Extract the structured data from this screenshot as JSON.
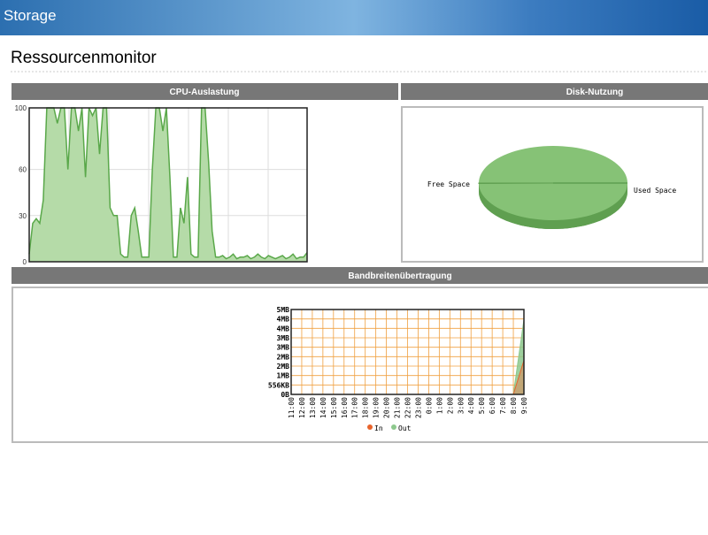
{
  "header": {
    "title": "Storage"
  },
  "page_title": "Ressourcenmonitor",
  "panels": {
    "cpu": {
      "title": "CPU-Auslastung",
      "chart_data": {
        "type": "area",
        "color": "#5aa84a",
        "fill": "#b5dba8",
        "values": [
          5,
          25,
          28,
          25,
          40,
          100,
          100,
          100,
          90,
          100,
          100,
          60,
          100,
          100,
          85,
          100,
          55,
          100,
          95,
          100,
          70,
          100,
          100,
          35,
          30,
          30,
          5,
          3,
          3,
          30,
          35,
          20,
          3,
          3,
          3,
          60,
          100,
          100,
          85,
          100,
          55,
          3,
          3,
          35,
          25,
          55,
          5,
          3,
          3,
          100,
          100,
          65,
          20,
          3,
          3,
          4,
          2,
          3,
          5,
          2,
          3,
          3,
          4,
          2,
          3,
          5,
          3,
          2,
          4,
          3,
          2,
          3,
          4,
          2,
          3,
          5,
          2,
          3,
          3,
          6
        ],
        "ylim": [
          0,
          100
        ],
        "yticks": [
          0,
          30,
          60,
          100
        ],
        "grid": true
      }
    },
    "disk": {
      "title": "Disk-Nutzung",
      "chart_data": {
        "type": "pie",
        "categories": [
          "Free Space",
          "Used Space"
        ],
        "values": [
          99.8,
          0.2
        ],
        "colors": [
          "#86c276",
          "#5f9f50"
        ]
      }
    },
    "bandwidth": {
      "title": "Bandbreitenübertragung",
      "chart_data": {
        "type": "area",
        "categories": [
          "11:00",
          "12:00",
          "13:00",
          "14:00",
          "15:00",
          "16:00",
          "17:00",
          "18:00",
          "19:00",
          "20:00",
          "21:00",
          "22:00",
          "23:00",
          "0:00",
          "1:00",
          "2:00",
          "3:00",
          "4:00",
          "5:00",
          "6:00",
          "7:00",
          "8:00",
          "9:00"
        ],
        "series": [
          {
            "name": "In",
            "color": "#e8642c",
            "values": [
              0,
              0,
              0,
              0,
              0,
              0,
              0,
              0,
              0,
              0,
              0,
              0,
              0,
              0,
              0,
              0,
              0,
              0,
              0,
              0,
              0,
              0,
              2000
            ]
          },
          {
            "name": "Out",
            "color": "#8dc88d",
            "values": [
              0,
              0,
              0,
              0,
              0,
              0,
              0,
              0,
              0,
              0,
              0,
              0,
              0,
              0,
              0,
              0,
              0,
              0,
              0,
              0,
              0,
              0,
              4400
            ]
          }
        ],
        "ylim": [
          0,
          5004
        ],
        "yticks": [
          {
            "value": 0,
            "label": "0B"
          },
          {
            "value": 556,
            "label": "556KB"
          },
          {
            "value": 1112,
            "label": "1MB"
          },
          {
            "value": 1668,
            "label": "2MB"
          },
          {
            "value": 2224,
            "label": "2MB"
          },
          {
            "value": 2780,
            "label": "3MB"
          },
          {
            "value": 3336,
            "label": "3MB"
          },
          {
            "value": 3892,
            "label": "4MB"
          },
          {
            "value": 4448,
            "label": "4MB"
          },
          {
            "value": 5004,
            "label": "5MB"
          }
        ],
        "grid": true,
        "grid_color": "#f0a040"
      }
    }
  }
}
